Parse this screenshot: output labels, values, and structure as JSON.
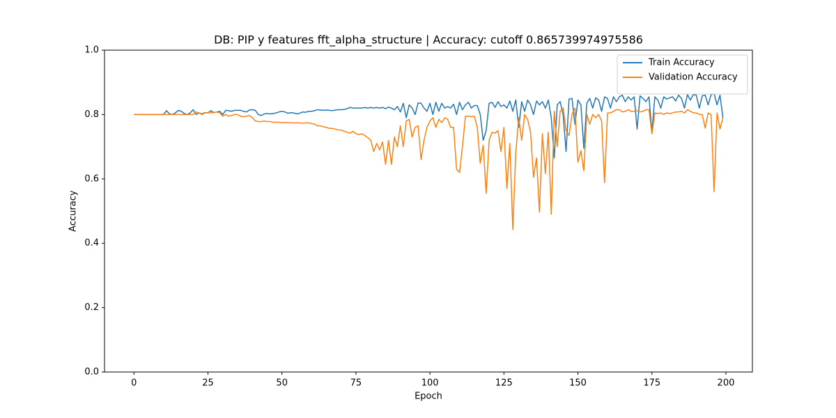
{
  "chart_data": {
    "type": "line",
    "title": "DB: PIP y features fft_alpha_structure | Accuracy: cutoff 0.865739974975586",
    "xlabel": "Epoch",
    "ylabel": "Accuracy",
    "x": [
      0,
      1,
      2,
      3,
      4,
      5,
      6,
      7,
      8,
      9,
      10,
      11,
      12,
      13,
      14,
      15,
      16,
      17,
      18,
      19,
      20,
      21,
      22,
      23,
      24,
      25,
      26,
      27,
      28,
      29,
      30,
      31,
      32,
      33,
      34,
      35,
      36,
      37,
      38,
      39,
      40,
      41,
      42,
      43,
      44,
      45,
      46,
      47,
      48,
      49,
      50,
      51,
      52,
      53,
      54,
      55,
      56,
      57,
      58,
      59,
      60,
      61,
      62,
      63,
      64,
      65,
      66,
      67,
      68,
      69,
      70,
      71,
      72,
      73,
      74,
      75,
      76,
      77,
      78,
      79,
      80,
      81,
      82,
      83,
      84,
      85,
      86,
      87,
      88,
      89,
      90,
      91,
      92,
      93,
      94,
      95,
      96,
      97,
      98,
      99,
      100,
      101,
      102,
      103,
      104,
      105,
      106,
      107,
      108,
      109,
      110,
      111,
      112,
      113,
      114,
      115,
      116,
      117,
      118,
      119,
      120,
      121,
      122,
      123,
      124,
      125,
      126,
      127,
      128,
      129,
      130,
      131,
      132,
      133,
      134,
      135,
      136,
      137,
      138,
      139,
      140,
      141,
      142,
      143,
      144,
      145,
      146,
      147,
      148,
      149,
      150,
      151,
      152,
      153,
      154,
      155,
      156,
      157,
      158,
      159,
      160,
      161,
      162,
      163,
      164,
      165,
      166,
      167,
      168,
      169,
      170,
      171,
      172,
      173,
      174,
      175,
      176,
      177,
      178,
      179,
      180,
      181,
      182,
      183,
      184,
      185,
      186,
      187,
      188,
      189,
      190,
      191,
      192,
      193,
      194,
      195,
      196,
      197,
      198,
      199
    ],
    "series": [
      {
        "name": "Train Accuracy",
        "color": "#1f77b4",
        "values": [
          0.8,
          0.8,
          0.8,
          0.8,
          0.8,
          0.8,
          0.8,
          0.8,
          0.8,
          0.8,
          0.8,
          0.812,
          0.802,
          0.8,
          0.805,
          0.813,
          0.81,
          0.803,
          0.8,
          0.805,
          0.815,
          0.8,
          0.805,
          0.802,
          0.806,
          0.805,
          0.812,
          0.806,
          0.808,
          0.81,
          0.8,
          0.813,
          0.812,
          0.81,
          0.813,
          0.813,
          0.813,
          0.81,
          0.808,
          0.814,
          0.815,
          0.813,
          0.8,
          0.797,
          0.802,
          0.803,
          0.802,
          0.803,
          0.805,
          0.808,
          0.81,
          0.808,
          0.804,
          0.806,
          0.805,
          0.802,
          0.804,
          0.808,
          0.807,
          0.81,
          0.81,
          0.812,
          0.815,
          0.814,
          0.813,
          0.814,
          0.813,
          0.812,
          0.814,
          0.815,
          0.815,
          0.816,
          0.818,
          0.822,
          0.82,
          0.82,
          0.82,
          0.82,
          0.822,
          0.82,
          0.822,
          0.82,
          0.822,
          0.82,
          0.822,
          0.818,
          0.823,
          0.82,
          0.815,
          0.825,
          0.808,
          0.835,
          0.79,
          0.83,
          0.82,
          0.8,
          0.836,
          0.835,
          0.82,
          0.81,
          0.835,
          0.8,
          0.838,
          0.81,
          0.835,
          0.82,
          0.825,
          0.82,
          0.832,
          0.8,
          0.838,
          0.815,
          0.83,
          0.838,
          0.82,
          0.828,
          0.828,
          0.8,
          0.72,
          0.75,
          0.835,
          0.838,
          0.822,
          0.84,
          0.825,
          0.83,
          0.82,
          0.842,
          0.81,
          0.845,
          0.76,
          0.84,
          0.81,
          0.845,
          0.83,
          0.8,
          0.842,
          0.83,
          0.84,
          0.82,
          0.845,
          0.79,
          0.665,
          0.83,
          0.84,
          0.8,
          0.685,
          0.848,
          0.85,
          0.77,
          0.845,
          0.83,
          0.695,
          0.835,
          0.85,
          0.82,
          0.852,
          0.845,
          0.81,
          0.855,
          0.85,
          0.82,
          0.855,
          0.84,
          0.855,
          0.86,
          0.84,
          0.855,
          0.845,
          0.855,
          0.755,
          0.858,
          0.85,
          0.84,
          0.855,
          0.745,
          0.855,
          0.845,
          0.82,
          0.855,
          0.848,
          0.852,
          0.855,
          0.842,
          0.86,
          0.85,
          0.82,
          0.862,
          0.845,
          0.862,
          0.86,
          0.82,
          0.858,
          0.86,
          0.83,
          0.862,
          0.865,
          0.83,
          0.86,
          0.79
        ]
      },
      {
        "name": "Validation Accuracy",
        "color": "#ff7f0e",
        "values": [
          0.8,
          0.8,
          0.8,
          0.8,
          0.8,
          0.8,
          0.8,
          0.8,
          0.8,
          0.8,
          0.8,
          0.8,
          0.8,
          0.8,
          0.8,
          0.8,
          0.8,
          0.8,
          0.8,
          0.8,
          0.8,
          0.808,
          0.805,
          0.8,
          0.805,
          0.806,
          0.805,
          0.806,
          0.808,
          0.805,
          0.795,
          0.8,
          0.795,
          0.797,
          0.8,
          0.8,
          0.795,
          0.793,
          0.795,
          0.797,
          0.79,
          0.78,
          0.778,
          0.778,
          0.78,
          0.778,
          0.778,
          0.776,
          0.776,
          0.776,
          0.775,
          0.775,
          0.775,
          0.774,
          0.774,
          0.774,
          0.774,
          0.773,
          0.774,
          0.774,
          0.772,
          0.77,
          0.765,
          0.765,
          0.762,
          0.76,
          0.757,
          0.757,
          0.755,
          0.752,
          0.752,
          0.748,
          0.745,
          0.742,
          0.748,
          0.74,
          0.738,
          0.74,
          0.735,
          0.728,
          0.72,
          0.685,
          0.71,
          0.69,
          0.715,
          0.645,
          0.72,
          0.645,
          0.73,
          0.7,
          0.765,
          0.7,
          0.78,
          0.785,
          0.73,
          0.76,
          0.765,
          0.66,
          0.72,
          0.76,
          0.78,
          0.79,
          0.76,
          0.785,
          0.775,
          0.79,
          0.785,
          0.76,
          0.76,
          0.63,
          0.62,
          0.7,
          0.795,
          0.795,
          0.793,
          0.795,
          0.76,
          0.648,
          0.705,
          0.555,
          0.72,
          0.745,
          0.742,
          0.75,
          0.685,
          0.76,
          0.57,
          0.71,
          0.443,
          0.68,
          0.79,
          0.72,
          0.8,
          0.785,
          0.745,
          0.605,
          0.665,
          0.497,
          0.74,
          0.617,
          0.745,
          0.49,
          0.81,
          0.7,
          0.81,
          0.82,
          0.75,
          0.735,
          0.8,
          0.82,
          0.652,
          0.688,
          0.625,
          0.8,
          0.77,
          0.8,
          0.79,
          0.8,
          0.78,
          0.588,
          0.805,
          0.805,
          0.81,
          0.815,
          0.815,
          0.808,
          0.81,
          0.815,
          0.81,
          0.81,
          0.812,
          0.808,
          0.81,
          0.815,
          0.815,
          0.74,
          0.805,
          0.803,
          0.805,
          0.8,
          0.805,
          0.803,
          0.805,
          0.808,
          0.808,
          0.81,
          0.805,
          0.815,
          0.81,
          0.805,
          0.805,
          0.8,
          0.8,
          0.758,
          0.805,
          0.8,
          0.56,
          0.805,
          0.755,
          0.79
        ]
      }
    ],
    "xlim": [
      -9.95,
      208.95
    ],
    "xticks": [
      0,
      25,
      50,
      75,
      100,
      125,
      150,
      175,
      200
    ],
    "ylim": [
      0,
      1
    ],
    "yticks": [
      {
        "value": 0,
        "label": "0.0"
      },
      0.2,
      0.4,
      0.6,
      0.8,
      {
        "value": 1,
        "label": "1.0"
      }
    ],
    "legend": "upper right",
    "grid": false
  }
}
